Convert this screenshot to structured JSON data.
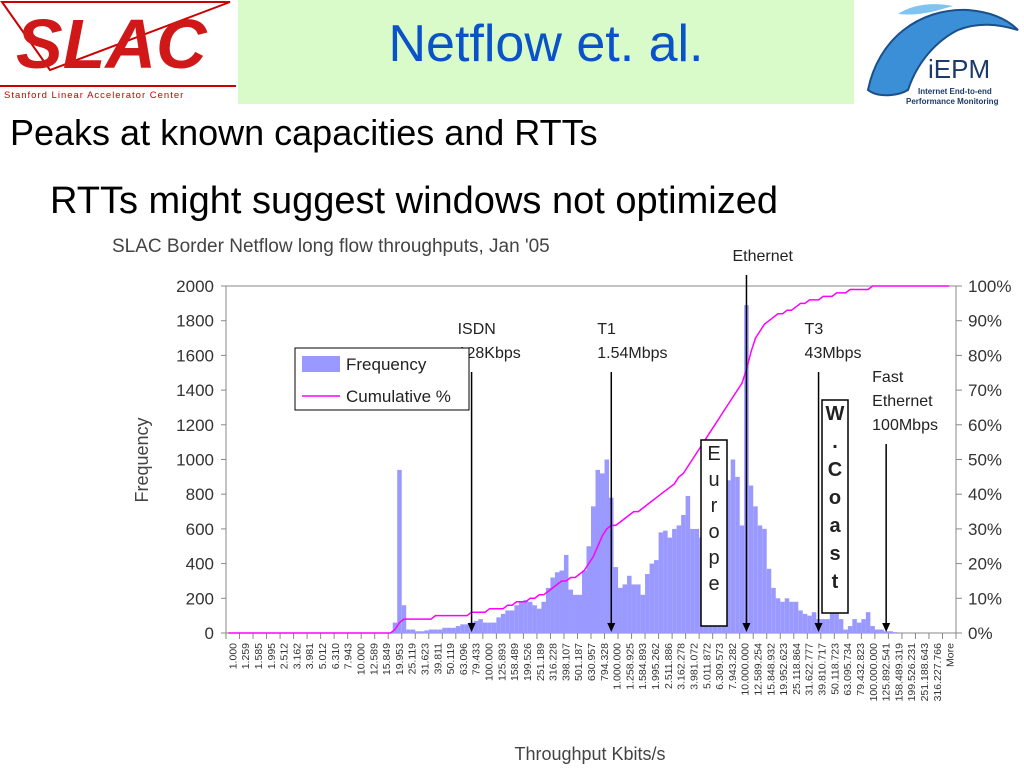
{
  "header": {
    "title": "Netflow et. al.",
    "left_logo_text": "SLAC",
    "left_logo_subtitle": "Stanford Linear Accelerator Center",
    "right_logo_text": "iEPM",
    "right_logo_subtitle1": "Internet End-to-end",
    "right_logo_subtitle2": "Performance Monitoring"
  },
  "bullets": {
    "b1": "Peaks at known capacities and RTTs",
    "b2": "RTTs might suggest windows not optimized"
  },
  "colors": {
    "bar": "#9999ff",
    "line": "#ff00ff",
    "title": "#0a52c8",
    "band": "#d9fbc9"
  },
  "chart_data": {
    "type": "bar",
    "title": "SLAC Border Netflow long flow throughputs, Jan '05",
    "xlabel": "Throughput Kbits/s",
    "ylabel": "Frequency",
    "ylim": [
      0,
      2000
    ],
    "y2lim": [
      0,
      100
    ],
    "yticks": [
      "2000",
      "1800",
      "1600",
      "1400",
      "1200",
      "1000",
      "800",
      "600",
      "400",
      "200",
      "0"
    ],
    "y2ticks": [
      "100%",
      "90%",
      "80%",
      "70%",
      "60%",
      "50%",
      "40%",
      "30%",
      "20%",
      "10%",
      "0%"
    ],
    "xtick_labels": [
      "1.000",
      "1.259",
      "1.585",
      "1.995",
      "2.512",
      "3.162",
      "3.981",
      "5.012",
      "6.310",
      "7.943",
      "10.000",
      "12.589",
      "15.849",
      "19.953",
      "25.119",
      "31.623",
      "39.811",
      "50.119",
      "63.096",
      "79.433",
      "100.000",
      "125.893",
      "158.489",
      "199.526",
      "251.189",
      "316.228",
      "398.107",
      "501.187",
      "630.957",
      "794.328",
      "1.000.000",
      "1.258.925",
      "1.584.893",
      "1.995.262",
      "2.511.886",
      "3.162.278",
      "3.981.072",
      "5.011.872",
      "6.309.573",
      "7.943.282",
      "10.000.000",
      "12.589.254",
      "15.848.932",
      "19.952.623",
      "25.118.864",
      "31.622.777",
      "39.810.717",
      "50.118.723",
      "63.095.734",
      "79.432.823",
      "100.000.000",
      "125.892.541",
      "158.489.319",
      "199.526.231",
      "251.188.643",
      "316.227.766",
      "More"
    ],
    "legend": {
      "position": "top-left",
      "series": [
        "Frequency",
        "Cumulative %"
      ]
    },
    "frequency": [
      0,
      0,
      0,
      0,
      0,
      0,
      0,
      0,
      0,
      0,
      0,
      0,
      0,
      0,
      0,
      0,
      0,
      0,
      0,
      0,
      0,
      0,
      0,
      0,
      0,
      0,
      0,
      0,
      0,
      0,
      0,
      0,
      0,
      0,
      0,
      0,
      0,
      60,
      940,
      160,
      20,
      20,
      10,
      10,
      15,
      20,
      20,
      20,
      30,
      30,
      30,
      40,
      50,
      50,
      60,
      70,
      80,
      60,
      60,
      60,
      90,
      110,
      130,
      130,
      160,
      180,
      190,
      180,
      160,
      140,
      180,
      260,
      320,
      350,
      360,
      450,
      250,
      220,
      220,
      360,
      500,
      730,
      940,
      920,
      1000,
      780,
      380,
      260,
      280,
      330,
      280,
      280,
      220,
      340,
      400,
      420,
      580,
      590,
      550,
      600,
      620,
      680,
      790,
      600,
      600,
      550,
      760,
      450,
      640,
      880,
      600,
      880,
      1000,
      900,
      620,
      1890,
      850,
      730,
      620,
      600,
      370,
      260,
      200,
      180,
      200,
      180,
      180,
      130,
      110,
      100,
      120,
      80,
      80,
      80,
      130,
      250,
      80,
      20,
      40,
      80,
      60,
      80,
      120,
      40,
      20,
      20,
      10,
      10,
      5,
      0,
      0,
      0,
      0,
      0,
      0,
      0,
      0,
      0,
      0,
      0,
      0,
      0
    ],
    "cumulative_pct": [
      0,
      0,
      0,
      0,
      0,
      0,
      0,
      0,
      0,
      0,
      0,
      0,
      0,
      0,
      0,
      0,
      0,
      0,
      0,
      0,
      0,
      0,
      0,
      0,
      0,
      0,
      0,
      0,
      0,
      0,
      0,
      0,
      0,
      0,
      0,
      0,
      0,
      1,
      3,
      4,
      4,
      4,
      4,
      4,
      4,
      4,
      5,
      5,
      5,
      5,
      5,
      5,
      5,
      5,
      6,
      6,
      6,
      6,
      7,
      7,
      7,
      7,
      8,
      8,
      9,
      9,
      9,
      10,
      10,
      11,
      11,
      12,
      13,
      14,
      15,
      15,
      16,
      16,
      17,
      18,
      20,
      22,
      25,
      28,
      30,
      31,
      31,
      32,
      33,
      34,
      35,
      35,
      36,
      37,
      38,
      39,
      40,
      41,
      42,
      43,
      45,
      46,
      48,
      50,
      52,
      54,
      56,
      58,
      60,
      62,
      64,
      66,
      68,
      70,
      72,
      76,
      81,
      85,
      87,
      89,
      90,
      91,
      92,
      92,
      93,
      93,
      94,
      95,
      95,
      96,
      96,
      96,
      97,
      97,
      97,
      98,
      98,
      98,
      99,
      99,
      99,
      99,
      99,
      100,
      100,
      100,
      100,
      100,
      100,
      100,
      100,
      100,
      100,
      100,
      100,
      100,
      100,
      100,
      100,
      100,
      100
    ],
    "annotations": [
      {
        "lines": [
          "ISDN",
          "128Kbps"
        ],
        "at_bar": 54
      },
      {
        "lines": [
          "T1",
          "1.54Mbps"
        ],
        "at_bar": 85
      },
      {
        "lines": [
          "Ethernet"
        ],
        "at_bar": 115
      },
      {
        "lines": [
          "T3",
          "43Mbps"
        ],
        "at_bar": 131
      },
      {
        "lines": [
          "Fast",
          "Ethernet",
          "100Mbps"
        ],
        "at_bar": 146
      }
    ],
    "boxes": [
      {
        "text": "Europe",
        "chars": [
          "E",
          "u",
          "r",
          "o",
          "p",
          "e"
        ]
      },
      {
        "text": "W.Coast",
        "chars": [
          "W",
          ".",
          "C",
          "o",
          "a",
          "s",
          "t"
        ]
      }
    ]
  }
}
